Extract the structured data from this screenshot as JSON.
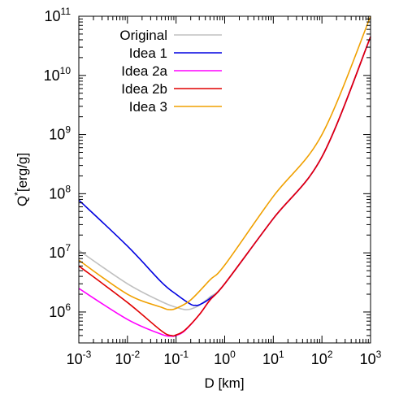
{
  "chart_data": {
    "type": "line",
    "xlabel": "D [km]",
    "ylabel": "Q*[erg/g]",
    "xscale": "log",
    "yscale": "log",
    "xlim": [
      0.001,
      1000
    ],
    "ylim": [
      300000,
      100000000000
    ],
    "x_ticks": [
      {
        "base": "10",
        "exp": "-3",
        "value": 0.001
      },
      {
        "base": "10",
        "exp": "-2",
        "value": 0.01
      },
      {
        "base": "10",
        "exp": "-1",
        "value": 0.1
      },
      {
        "base": "10",
        "exp": "0",
        "value": 1
      },
      {
        "base": "10",
        "exp": "1",
        "value": 10
      },
      {
        "base": "10",
        "exp": "2",
        "value": 100
      },
      {
        "base": "10",
        "exp": "3",
        "value": 1000
      }
    ],
    "y_ticks": [
      {
        "base": "10",
        "exp": "6",
        "value": 1000000
      },
      {
        "base": "10",
        "exp": "7",
        "value": 10000000
      },
      {
        "base": "10",
        "exp": "8",
        "value": 100000000
      },
      {
        "base": "10",
        "exp": "9",
        "value": 1000000000
      },
      {
        "base": "10",
        "exp": "10",
        "value": 10000000000
      },
      {
        "base": "10",
        "exp": "11",
        "value": 100000000000
      }
    ],
    "legend_position": "top-left",
    "grid": false,
    "series": [
      {
        "name": "Original",
        "color": "#c0c0c0",
        "points": [
          [
            0.001,
            11000000
          ],
          [
            0.01,
            3000000
          ],
          [
            0.05,
            1500000
          ],
          [
            0.1,
            1200000
          ],
          [
            0.15,
            1100000
          ],
          [
            0.2,
            1120000
          ],
          [
            0.3,
            1300000
          ],
          [
            0.5,
            1800000
          ],
          [
            1,
            3000000
          ],
          [
            10,
            38000000
          ],
          [
            100,
            420000000
          ],
          [
            1000,
            45000000000
          ]
        ]
      },
      {
        "name": "Idea 1",
        "color": "#0000e0",
        "points": [
          [
            0.001,
            78000000
          ],
          [
            0.01,
            13000000
          ],
          [
            0.05,
            3200000
          ],
          [
            0.1,
            2000000
          ],
          [
            0.2,
            1350000
          ],
          [
            0.25,
            1300000
          ],
          [
            0.3,
            1320000
          ],
          [
            0.5,
            1700000
          ],
          [
            1,
            3000000
          ],
          [
            10,
            38000000
          ],
          [
            100,
            420000000
          ],
          [
            1000,
            45000000000
          ]
        ]
      },
      {
        "name": "Idea 2a",
        "color": "#ff00ff",
        "points": [
          [
            0.001,
            2500000
          ],
          [
            0.01,
            750000
          ],
          [
            0.05,
            420000
          ],
          [
            0.08,
            390000
          ],
          [
            0.1,
            400000
          ],
          [
            0.15,
            480000
          ],
          [
            0.3,
            900000
          ],
          [
            0.5,
            1600000
          ],
          [
            1,
            3000000
          ],
          [
            10,
            38000000
          ],
          [
            100,
            420000000
          ],
          [
            1000,
            45000000000
          ]
        ]
      },
      {
        "name": "Idea 2b",
        "color": "#e00000",
        "points": [
          [
            0.001,
            6000000
          ],
          [
            0.01,
            1450000
          ],
          [
            0.05,
            480000
          ],
          [
            0.08,
            400000
          ],
          [
            0.1,
            410000
          ],
          [
            0.15,
            490000
          ],
          [
            0.3,
            900000
          ],
          [
            0.5,
            1600000
          ],
          [
            1,
            3000000
          ],
          [
            10,
            38000000
          ],
          [
            100,
            420000000
          ],
          [
            1000,
            45000000000
          ]
        ]
      },
      {
        "name": "Idea 3",
        "color": "#f0a000",
        "points": [
          [
            0.001,
            7500000
          ],
          [
            0.01,
            2000000
          ],
          [
            0.05,
            1200000
          ],
          [
            0.07,
            1100000
          ],
          [
            0.1,
            1150000
          ],
          [
            0.2,
            1600000
          ],
          [
            0.5,
            3500000
          ],
          [
            1,
            6200000
          ],
          [
            10,
            90000000
          ],
          [
            100,
            1000000000
          ],
          [
            1000,
            100000000000
          ]
        ]
      }
    ]
  }
}
